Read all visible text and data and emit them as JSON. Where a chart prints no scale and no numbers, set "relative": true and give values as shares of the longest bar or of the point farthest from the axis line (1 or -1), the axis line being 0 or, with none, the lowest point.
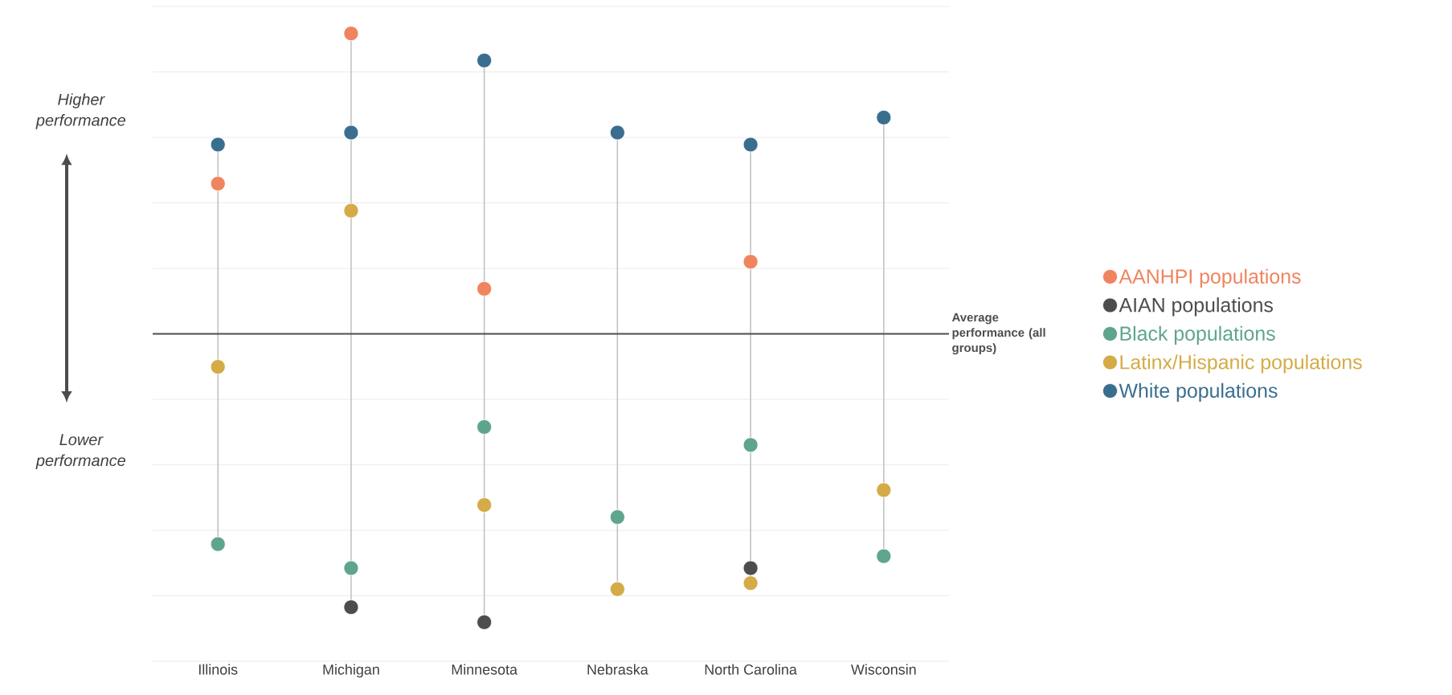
{
  "chart_data": {
    "type": "scatter",
    "relative": true,
    "marker": "circle",
    "grid": true,
    "legend": "right",
    "categories": [
      "Illinois",
      "Michigan",
      "Minnesota",
      "Nebraska",
      "North Carolina",
      "Wisconsin"
    ],
    "series": [
      {
        "name": "AANHPI populations",
        "color": "#f0845e",
        "values": [
          0.5,
          1,
          0.15,
          null,
          0.24,
          null
        ]
      },
      {
        "name": "AIAN populations",
        "color": "#4d4d4f",
        "values": [
          null,
          -0.91,
          -0.96,
          null,
          -0.78,
          null
        ]
      },
      {
        "name": "Black populations",
        "color": "#5fa58e",
        "values": [
          -0.7,
          -0.78,
          -0.31,
          -0.61,
          -0.37,
          -0.74
        ]
      },
      {
        "name": "Latinx/Hispanic populations",
        "color": "#d4ab46",
        "values": [
          -0.11,
          0.41,
          -0.57,
          -0.85,
          -0.83,
          -0.52
        ]
      },
      {
        "name": "White populations",
        "color": "#3a6e8f",
        "values": [
          0.63,
          0.67,
          0.91,
          0.67,
          0.63,
          0.72
        ]
      }
    ],
    "ref_lines": [
      {
        "axis": "y",
        "value": 0,
        "label": "Average performance (all groups)",
        "color": "#4d4d4f"
      }
    ],
    "annotations": [
      "Higher performance",
      "Lower performance"
    ]
  }
}
